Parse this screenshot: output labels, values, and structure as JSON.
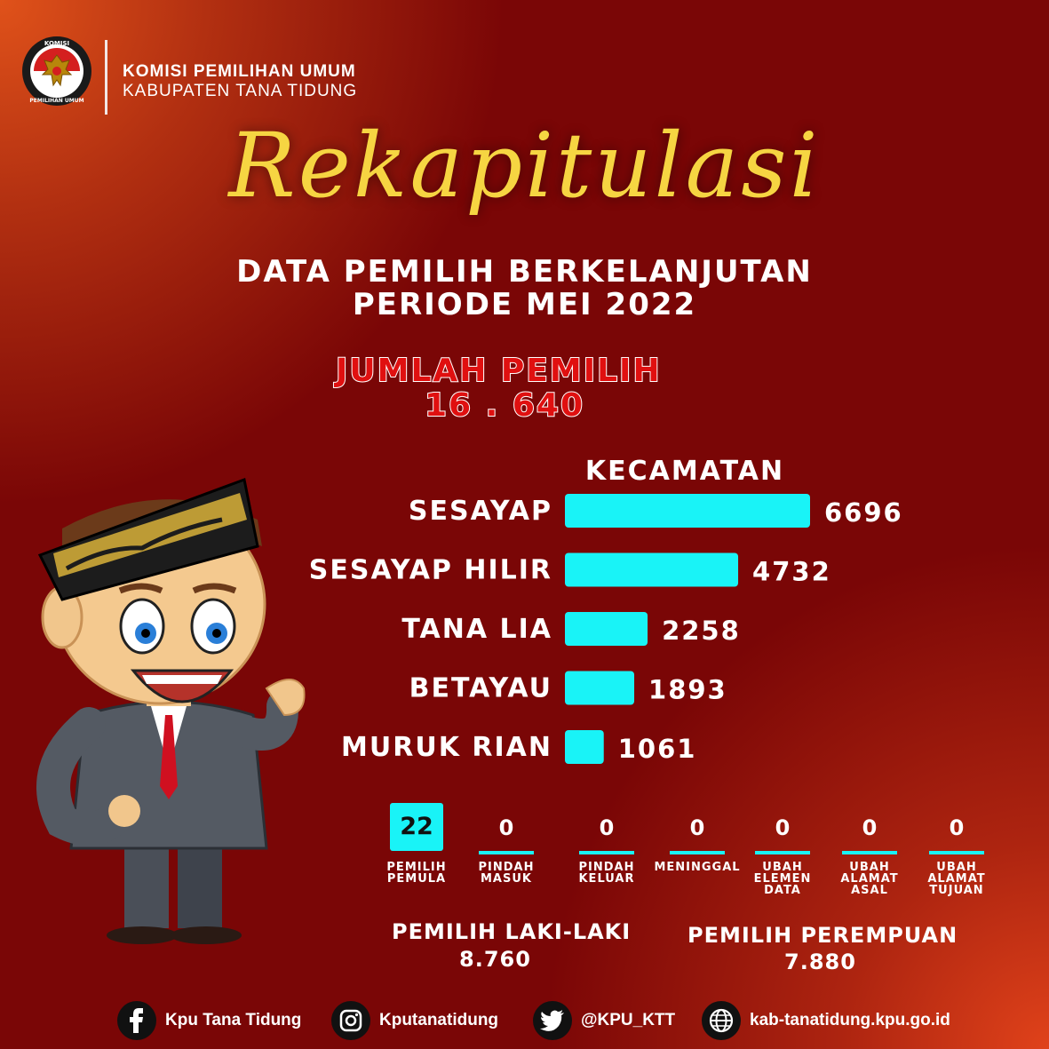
{
  "header": {
    "org_line1": "KOMISI PEMILIHAN UMUM",
    "org_line2": "KABUPATEN TANA TIDUNG",
    "logo": {
      "top_text": "KOMISI",
      "bottom_text": "PEMILIHAN UMUM",
      "icon": "kpu-garuda-logo"
    }
  },
  "title": "Rekapitulasi",
  "subtitle_line1": "DATA PEMILIH BERKELANJUTAN",
  "subtitle_line2": "PERIODE MEI 2022",
  "total": {
    "label": "JUMLAH PEMILIH",
    "value": "16 . 640"
  },
  "mascot": {
    "icon": "mascot-man-in-suit"
  },
  "chart_data": {
    "type": "bar",
    "orientation": "horizontal",
    "title": "KECAMATAN",
    "categories": [
      "SESAYAP",
      "SESAYAP HILIR",
      "TANA LIA",
      "BETAYAU",
      "MURUK RIAN"
    ],
    "values": [
      6696,
      4732,
      2258,
      1893,
      1061
    ],
    "bar_color": "#19f3f7",
    "grid": false
  },
  "stats": [
    {
      "value": "22",
      "label": "PEMILIH\nPEMULA",
      "highlight": true
    },
    {
      "value": "0",
      "label": "PINDAH\nMASUK",
      "highlight": false
    },
    {
      "value": "0",
      "label": "PINDAH\nKELUAR",
      "highlight": false
    },
    {
      "value": "0",
      "label": "MENINGGAL",
      "highlight": false
    },
    {
      "value": "0",
      "label": "UBAH\nELEMEN\nDATA",
      "highlight": false
    },
    {
      "value": "0",
      "label": "UBAH\nALAMAT\nASAL",
      "highlight": false
    },
    {
      "value": "0",
      "label": "UBAH\nALAMAT\nTUJUAN",
      "highlight": false
    }
  ],
  "gender": {
    "male_label": "PEMILIH LAKI-LAKI",
    "male_value": "8.760",
    "female_label": "PEMILIH PEREMPUAN",
    "female_value": "7.880"
  },
  "footer": [
    {
      "icon": "facebook-icon",
      "text": "Kpu Tana Tidung"
    },
    {
      "icon": "instagram-icon",
      "text": "Kputanatidung"
    },
    {
      "icon": "twitter-icon",
      "text": "@KPU_KTT"
    },
    {
      "icon": "globe-icon",
      "text": "kab-tanatidung.kpu.go.id"
    }
  ],
  "colors": {
    "background": "#7a0606",
    "accent": "#19f3f7",
    "title": "#f6d542",
    "total": "#e01010"
  }
}
